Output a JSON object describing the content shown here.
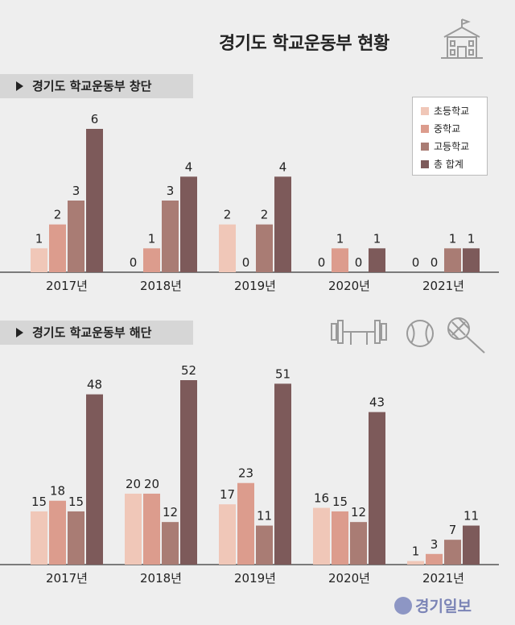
{
  "title": "경기도 학교운동부 현황",
  "colors": {
    "elementary": "#f0c7b8",
    "middle": "#dc9c8d",
    "high": "#a97c74",
    "total": "#7d5a5a"
  },
  "legend": [
    "초등학교",
    "중학교",
    "고등학교",
    "총 합계"
  ],
  "chart_data": [
    {
      "type": "bar",
      "title": "경기도 학교운동부 창단",
      "categories": [
        "2017년",
        "2018년",
        "2019년",
        "2020년",
        "2021년"
      ],
      "series": [
        {
          "name": "초등학교",
          "values": [
            1,
            0,
            2,
            0,
            0
          ]
        },
        {
          "name": "중학교",
          "values": [
            2,
            1,
            0,
            1,
            0
          ]
        },
        {
          "name": "고등학교",
          "values": [
            3,
            3,
            2,
            0,
            1
          ]
        },
        {
          "name": "총 합계",
          "values": [
            6,
            4,
            4,
            1,
            1
          ]
        }
      ],
      "ylim": [
        0,
        6
      ]
    },
    {
      "type": "bar",
      "title": "경기도 학교운동부 해단",
      "categories": [
        "2017년",
        "2018년",
        "2019년",
        "2020년",
        "2021년"
      ],
      "series": [
        {
          "name": "초등학교",
          "values": [
            15,
            20,
            17,
            16,
            1
          ]
        },
        {
          "name": "중학교",
          "values": [
            18,
            20,
            23,
            15,
            3
          ]
        },
        {
          "name": "고등학교",
          "values": [
            15,
            12,
            11,
            12,
            7
          ]
        },
        {
          "name": "총 합계",
          "values": [
            48,
            52,
            51,
            43,
            11
          ]
        }
      ],
      "ylim": [
        0,
        52
      ]
    }
  ],
  "logo_text": "경기일보"
}
